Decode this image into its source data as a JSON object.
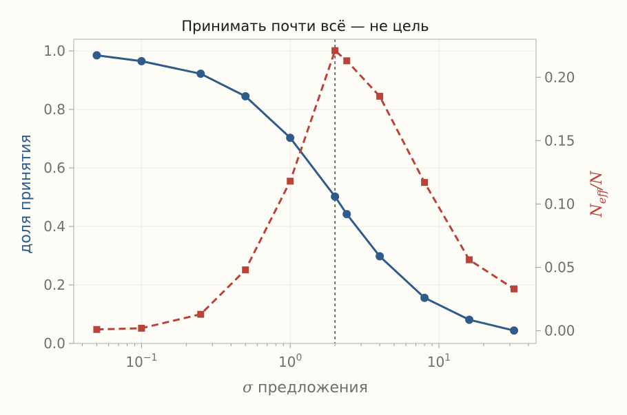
{
  "chart_data": {
    "type": "line",
    "title": "Принимать почти всё — не цель",
    "xlabel_symbol": "σ",
    "xlabel_text": " предложения",
    "xscale": "log",
    "xlim": [
      0.035,
      45
    ],
    "x_ticks": [
      {
        "base": "10",
        "exp": "−1"
      },
      {
        "base": "10",
        "exp": "0"
      },
      {
        "base": "10",
        "exp": "1"
      }
    ],
    "x_tick_values": [
      0.1,
      1,
      10
    ],
    "y_left": {
      "label": "доля принятия",
      "ylim": [
        0,
        1.04
      ],
      "ticks": [
        "0.0",
        "0.2",
        "0.4",
        "0.6",
        "0.8",
        "1.0"
      ],
      "tick_values": [
        0,
        0.2,
        0.4,
        0.6,
        0.8,
        1.0
      ]
    },
    "y_right": {
      "label_main": "N",
      "label_sub": "eff",
      "label_tail": "/N",
      "ylim": [
        -0.01,
        0.23
      ],
      "ticks": [
        "0.00",
        "0.05",
        "0.10",
        "0.15",
        "0.20"
      ],
      "tick_values": [
        0,
        0.05,
        0.1,
        0.15,
        0.2
      ]
    },
    "series": [
      {
        "axis": "left",
        "color": "#2f5b8a",
        "style": "solid",
        "marker": "circle",
        "x": [
          0.05,
          0.1,
          0.25,
          0.5,
          1,
          2,
          2.4,
          4,
          8,
          16,
          32
        ],
        "values": [
          0.985,
          0.965,
          0.922,
          0.845,
          0.703,
          0.502,
          0.442,
          0.298,
          0.156,
          0.081,
          0.044
        ]
      },
      {
        "axis": "right",
        "color": "#b8433a",
        "style": "dashed",
        "marker": "square",
        "x": [
          0.05,
          0.1,
          0.25,
          0.5,
          1,
          2,
          2.4,
          4,
          8,
          16,
          32
        ],
        "values": [
          0.001,
          0.002,
          0.013,
          0.048,
          0.118,
          0.221,
          0.213,
          0.185,
          0.117,
          0.056,
          0.033
        ]
      }
    ],
    "vline": {
      "x": 2,
      "color": "#666666",
      "style": "dotted"
    },
    "grid": true,
    "colors": {
      "left_axis": "#2f5b8a",
      "right_axis": "#b8433a"
    }
  }
}
